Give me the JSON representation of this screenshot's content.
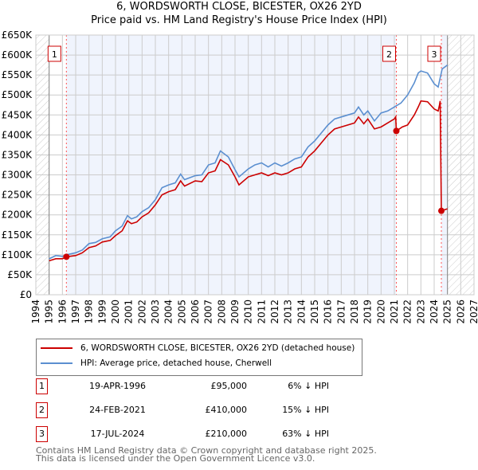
{
  "title": "6, WORDSWORTH CLOSE, BICESTER, OX26 2YD",
  "subtitle": "Price paid vs. HM Land Registry's House Price Index (HPI)",
  "chart_data": {
    "type": "line",
    "title": "6, WORDSWORTH CLOSE, BICESTER, OX26 2YD",
    "subtitle": "Price paid vs. HM Land Registry's House Price Index (HPI)",
    "xlim": [
      1994,
      2027
    ],
    "ylim": [
      0,
      650000
    ],
    "x_ticks": [
      "1994",
      "1995",
      "1996",
      "1997",
      "1998",
      "1999",
      "2000",
      "2001",
      "2002",
      "2003",
      "2004",
      "2005",
      "2006",
      "2007",
      "2008",
      "2009",
      "2010",
      "2011",
      "2012",
      "2013",
      "2014",
      "2015",
      "2016",
      "2017",
      "2018",
      "2019",
      "2020",
      "2021",
      "2022",
      "2023",
      "2024",
      "2025",
      "2026",
      "2027"
    ],
    "y_ticks": [
      {
        "v": 0,
        "label": "£0"
      },
      {
        "v": 50000,
        "label": "£50K"
      },
      {
        "v": 100000,
        "label": "£100K"
      },
      {
        "v": 150000,
        "label": "£150K"
      },
      {
        "v": 200000,
        "label": "£200K"
      },
      {
        "v": 250000,
        "label": "£250K"
      },
      {
        "v": 300000,
        "label": "£300K"
      },
      {
        "v": 350000,
        "label": "£350K"
      },
      {
        "v": 400000,
        "label": "£400K"
      },
      {
        "v": 450000,
        "label": "£450K"
      },
      {
        "v": 500000,
        "label": "£500K"
      },
      {
        "v": 550000,
        "label": "£550K"
      },
      {
        "v": 600000,
        "label": "£600K"
      },
      {
        "v": 650000,
        "label": "£650K"
      }
    ],
    "grid": true,
    "data_range": [
      1995,
      2025
    ],
    "series": [
      {
        "name": "6, WORDSWORTH CLOSE, BICESTER, OX26 2YD (detached house)",
        "color": "#cc0000",
        "points": [
          [
            1995,
            85000
          ],
          [
            1995.5,
            90000
          ],
          [
            1996,
            90000
          ],
          [
            1996.3,
            95000
          ],
          [
            1997,
            98000
          ],
          [
            1997.5,
            105000
          ],
          [
            1998,
            118000
          ],
          [
            1998.5,
            122000
          ],
          [
            1999,
            132000
          ],
          [
            1999.6,
            136000
          ],
          [
            2000,
            148000
          ],
          [
            2000.5,
            160000
          ],
          [
            2000.9,
            185000
          ],
          [
            2001.2,
            178000
          ],
          [
            2001.6,
            182000
          ],
          [
            2002,
            195000
          ],
          [
            2002.5,
            205000
          ],
          [
            2003,
            225000
          ],
          [
            2003.5,
            250000
          ],
          [
            2004,
            258000
          ],
          [
            2004.5,
            263000
          ],
          [
            2004.9,
            285000
          ],
          [
            2005.2,
            272000
          ],
          [
            2006,
            285000
          ],
          [
            2006.5,
            283000
          ],
          [
            2007,
            305000
          ],
          [
            2007.5,
            310000
          ],
          [
            2007.9,
            338000
          ],
          [
            2008.5,
            325000
          ],
          [
            2009,
            295000
          ],
          [
            2009.3,
            275000
          ],
          [
            2010,
            295000
          ],
          [
            2010.5,
            300000
          ],
          [
            2011,
            305000
          ],
          [
            2011.5,
            298000
          ],
          [
            2012,
            305000
          ],
          [
            2012.5,
            300000
          ],
          [
            2013,
            305000
          ],
          [
            2013.5,
            315000
          ],
          [
            2014,
            320000
          ],
          [
            2014.5,
            345000
          ],
          [
            2015,
            360000
          ],
          [
            2015.5,
            380000
          ],
          [
            2016,
            400000
          ],
          [
            2016.5,
            415000
          ],
          [
            2017,
            420000
          ],
          [
            2017.5,
            425000
          ],
          [
            2018,
            430000
          ],
          [
            2018.3,
            445000
          ],
          [
            2018.7,
            428000
          ],
          [
            2019,
            440000
          ],
          [
            2019.5,
            415000
          ],
          [
            2020,
            420000
          ],
          [
            2020.5,
            430000
          ],
          [
            2021,
            440000
          ],
          [
            2021.1,
            445000
          ],
          [
            2021.15,
            410000
          ],
          [
            2021.6,
            420000
          ],
          [
            2022,
            425000
          ],
          [
            2022.5,
            450000
          ],
          [
            2022.8,
            470000
          ],
          [
            2023,
            485000
          ],
          [
            2023.5,
            483000
          ],
          [
            2024,
            465000
          ],
          [
            2024.3,
            460000
          ],
          [
            2024.4,
            475000
          ],
          [
            2024.45,
            485000
          ],
          [
            2024.54,
            210000
          ],
          [
            2025,
            215000
          ]
        ]
      },
      {
        "name": "HPI: Average price, detached house, Cherwell",
        "color": "#5b8fd0",
        "points": [
          [
            1995,
            90000
          ],
          [
            1995.5,
            98000
          ],
          [
            1996,
            96000
          ],
          [
            1996.3,
            100000
          ],
          [
            1997,
            105000
          ],
          [
            1997.5,
            112000
          ],
          [
            1998,
            128000
          ],
          [
            1998.5,
            131000
          ],
          [
            1999,
            140000
          ],
          [
            1999.6,
            145000
          ],
          [
            2000,
            160000
          ],
          [
            2000.5,
            172000
          ],
          [
            2000.9,
            198000
          ],
          [
            2001.2,
            190000
          ],
          [
            2001.6,
            195000
          ],
          [
            2002,
            208000
          ],
          [
            2002.5,
            218000
          ],
          [
            2003,
            238000
          ],
          [
            2003.5,
            268000
          ],
          [
            2004,
            275000
          ],
          [
            2004.5,
            280000
          ],
          [
            2004.9,
            302000
          ],
          [
            2005.2,
            288000
          ],
          [
            2006,
            298000
          ],
          [
            2006.5,
            300000
          ],
          [
            2007,
            325000
          ],
          [
            2007.5,
            330000
          ],
          [
            2007.9,
            360000
          ],
          [
            2008.5,
            345000
          ],
          [
            2009,
            313000
          ],
          [
            2009.3,
            295000
          ],
          [
            2010,
            315000
          ],
          [
            2010.5,
            325000
          ],
          [
            2011,
            330000
          ],
          [
            2011.5,
            320000
          ],
          [
            2012,
            330000
          ],
          [
            2012.5,
            322000
          ],
          [
            2013,
            330000
          ],
          [
            2013.5,
            340000
          ],
          [
            2014,
            345000
          ],
          [
            2014.5,
            370000
          ],
          [
            2015,
            385000
          ],
          [
            2015.5,
            405000
          ],
          [
            2016,
            425000
          ],
          [
            2016.5,
            440000
          ],
          [
            2017,
            445000
          ],
          [
            2017.5,
            450000
          ],
          [
            2018,
            455000
          ],
          [
            2018.3,
            470000
          ],
          [
            2018.7,
            450000
          ],
          [
            2019,
            460000
          ],
          [
            2019.5,
            435000
          ],
          [
            2020,
            455000
          ],
          [
            2020.5,
            460000
          ],
          [
            2021,
            470000
          ],
          [
            2021.5,
            480000
          ],
          [
            2022,
            500000
          ],
          [
            2022.5,
            530000
          ],
          [
            2022.8,
            555000
          ],
          [
            2023,
            560000
          ],
          [
            2023.5,
            555000
          ],
          [
            2024,
            528000
          ],
          [
            2024.3,
            520000
          ],
          [
            2024.6,
            565000
          ],
          [
            2025,
            575000
          ]
        ]
      }
    ],
    "sales": [
      {
        "label": "1",
        "x": 1996.3,
        "value": 95000
      },
      {
        "label": "2",
        "x": 2021.15,
        "value": 410000
      },
      {
        "label": "3",
        "x": 2024.54,
        "value": 210000
      }
    ]
  },
  "legend": {
    "property": "6, WORDSWORTH CLOSE, BICESTER, OX26 2YD (detached house)",
    "hpi": "HPI: Average price, detached house, Cherwell"
  },
  "transactions": [
    {
      "num": "1",
      "date": "19-APR-1996",
      "price": "£95,000",
      "hpi": "6% ↓ HPI"
    },
    {
      "num": "2",
      "date": "24-FEB-2021",
      "price": "£410,000",
      "hpi": "15% ↓ HPI"
    },
    {
      "num": "3",
      "date": "17-JUL-2024",
      "price": "£210,000",
      "hpi": "63% ↓ HPI"
    }
  ],
  "footer": {
    "line1": "Contains HM Land Registry data © Crown copyright and database right 2025.",
    "line2": "This data is licensed under the Open Government Licence v3.0."
  }
}
